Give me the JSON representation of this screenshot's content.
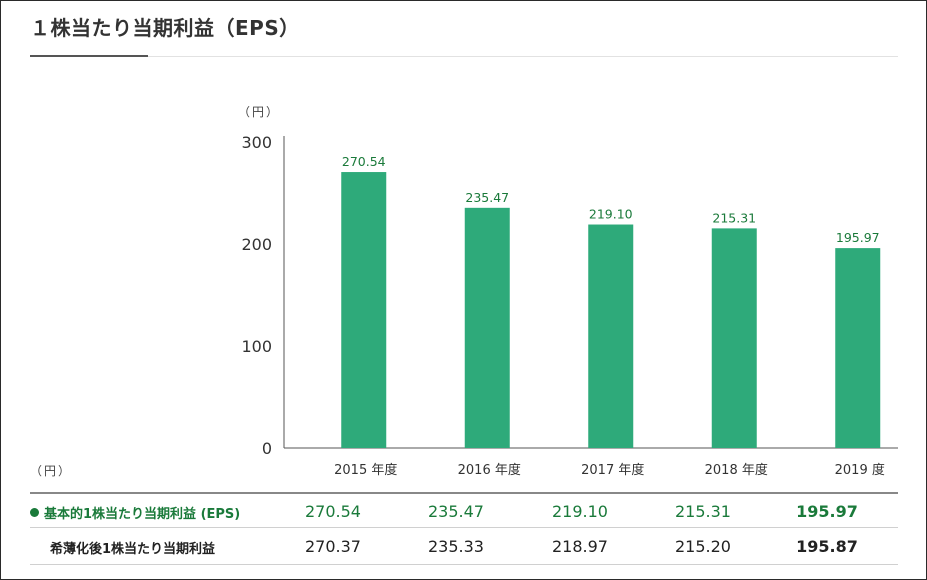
{
  "title": "１株当たり当期利益（EPS）",
  "chart_data": {
    "type": "bar",
    "y_unit": "（円）",
    "categories": [
      "2015 年度",
      "2016 年度",
      "2017 年度",
      "2018 年度",
      "2019 度"
    ],
    "values": [
      270.54,
      235.47,
      219.1,
      215.31,
      195.97
    ],
    "value_labels": [
      "270.54",
      "235.47",
      "219.10",
      "215.31",
      "195.97"
    ],
    "yticks": [
      "0",
      "100",
      "200",
      "300"
    ],
    "ylim": [
      0,
      300
    ],
    "bar_color": "#2eaa7a",
    "grid": false
  },
  "table": {
    "unit": "（円）",
    "rows": [
      {
        "label": "基本的1株当たり当期利益 (EPS)",
        "marker": "green-dot",
        "values": [
          "270.54",
          "235.47",
          "219.10",
          "215.31",
          "195.97"
        ]
      },
      {
        "label": "希薄化後1株当たり当期利益",
        "values": [
          "270.37",
          "235.33",
          "218.97",
          "215.20",
          "195.87"
        ]
      }
    ]
  },
  "colors": {
    "accent_green": "#1a7a3a",
    "bar": "#2eaa7a"
  }
}
